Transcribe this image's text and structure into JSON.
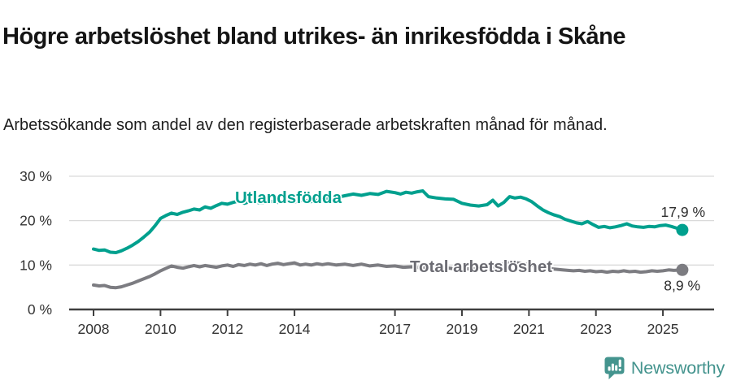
{
  "header": {
    "title": "Högre arbetslöshet bland utrikes- än inrikesfödda i Skåne",
    "subtitle": "Arbetssökande som andel av den registerbaserade arbetskraften månad för månad."
  },
  "footer": {
    "brand": "Newsworthy",
    "brand_color": "#44948e",
    "icon": "newsworthy-chart-bubble-icon"
  },
  "chart_data": {
    "type": "line",
    "title": "Högre arbetslöshet bland utrikes- än inrikesfödda i Skåne",
    "subtitle": "Arbetssökande som andel av den registerbaserade arbetskraften månad för månad.",
    "unit": "%",
    "grid": "horizontal",
    "legend_position": "inline-labels",
    "xlim": [
      2007.3,
      2026.3
    ],
    "ylim": [
      0,
      32
    ],
    "x_ticks": [
      2008,
      2010,
      2012,
      2014,
      2017,
      2019,
      2021,
      2023,
      2025
    ],
    "y_ticks": [
      {
        "value": 0,
        "label": "0 %"
      },
      {
        "value": 10,
        "label": "10 %"
      },
      {
        "value": 20,
        "label": "20 %"
      },
      {
        "value": 30,
        "label": "30 %"
      }
    ],
    "axis_color": "#3f3f3f",
    "gridline_color": "#dadada",
    "tick_label_color": "#333333",
    "end_label_color": "#2d2d2d",
    "series": [
      {
        "name": "Utlandsfödda",
        "color": "#00a08e",
        "label_color": "#00a08e",
        "end_label": "17,9 %",
        "end_value": 17.9,
        "points": [
          [
            2008.0,
            13.6
          ],
          [
            2008.17,
            13.3
          ],
          [
            2008.33,
            13.4
          ],
          [
            2008.5,
            12.9
          ],
          [
            2008.67,
            12.8
          ],
          [
            2008.83,
            13.2
          ],
          [
            2009.0,
            13.8
          ],
          [
            2009.17,
            14.5
          ],
          [
            2009.33,
            15.3
          ],
          [
            2009.5,
            16.3
          ],
          [
            2009.67,
            17.4
          ],
          [
            2009.83,
            18.8
          ],
          [
            2010.0,
            20.5
          ],
          [
            2010.17,
            21.2
          ],
          [
            2010.33,
            21.7
          ],
          [
            2010.5,
            21.4
          ],
          [
            2010.67,
            21.9
          ],
          [
            2010.83,
            22.2
          ],
          [
            2011.0,
            22.6
          ],
          [
            2011.17,
            22.4
          ],
          [
            2011.33,
            23.1
          ],
          [
            2011.5,
            22.8
          ],
          [
            2011.67,
            23.4
          ],
          [
            2011.83,
            23.9
          ],
          [
            2012.0,
            23.7
          ],
          [
            2012.17,
            24.1
          ],
          [
            2012.33,
            24.4
          ],
          [
            2012.5,
            23.9
          ],
          [
            2012.67,
            24.3
          ],
          [
            2012.83,
            24.1
          ],
          [
            2013.0,
            24.0
          ],
          [
            2013.25,
            24.4
          ],
          [
            2013.5,
            24.1
          ],
          [
            2013.75,
            24.5
          ],
          [
            2014.0,
            24.2
          ],
          [
            2014.25,
            24.6
          ],
          [
            2014.5,
            24.3
          ],
          [
            2014.75,
            24.7
          ],
          [
            2015.0,
            24.9
          ],
          [
            2015.25,
            25.2
          ],
          [
            2015.5,
            25.6
          ],
          [
            2015.75,
            26.0
          ],
          [
            2016.0,
            25.7
          ],
          [
            2016.25,
            26.1
          ],
          [
            2016.5,
            25.9
          ],
          [
            2016.75,
            26.6
          ],
          [
            2017.0,
            26.3
          ],
          [
            2017.17,
            26.0
          ],
          [
            2017.33,
            26.4
          ],
          [
            2017.5,
            26.2
          ],
          [
            2017.67,
            26.5
          ],
          [
            2017.83,
            26.7
          ],
          [
            2018.0,
            25.4
          ],
          [
            2018.25,
            25.1
          ],
          [
            2018.5,
            24.9
          ],
          [
            2018.75,
            24.8
          ],
          [
            2019.0,
            23.9
          ],
          [
            2019.25,
            23.5
          ],
          [
            2019.5,
            23.3
          ],
          [
            2019.75,
            23.6
          ],
          [
            2019.92,
            24.6
          ],
          [
            2020.08,
            23.3
          ],
          [
            2020.25,
            24.1
          ],
          [
            2020.42,
            25.4
          ],
          [
            2020.58,
            25.1
          ],
          [
            2020.75,
            25.3
          ],
          [
            2020.92,
            24.9
          ],
          [
            2021.08,
            24.3
          ],
          [
            2021.25,
            23.3
          ],
          [
            2021.42,
            22.4
          ],
          [
            2021.58,
            21.8
          ],
          [
            2021.75,
            21.3
          ],
          [
            2021.92,
            20.9
          ],
          [
            2022.08,
            20.3
          ],
          [
            2022.25,
            19.9
          ],
          [
            2022.42,
            19.5
          ],
          [
            2022.58,
            19.3
          ],
          [
            2022.75,
            19.8
          ],
          [
            2022.92,
            19.1
          ],
          [
            2023.08,
            18.5
          ],
          [
            2023.25,
            18.7
          ],
          [
            2023.42,
            18.4
          ],
          [
            2023.58,
            18.6
          ],
          [
            2023.75,
            18.9
          ],
          [
            2023.92,
            19.3
          ],
          [
            2024.08,
            18.8
          ],
          [
            2024.25,
            18.6
          ],
          [
            2024.42,
            18.5
          ],
          [
            2024.58,
            18.7
          ],
          [
            2024.75,
            18.6
          ],
          [
            2024.92,
            18.9
          ],
          [
            2025.08,
            19.0
          ],
          [
            2025.25,
            18.7
          ],
          [
            2025.42,
            18.3
          ],
          [
            2025.58,
            17.9
          ]
        ]
      },
      {
        "name": "Total arbetslöshet",
        "color": "#7c7c81",
        "label_color": "#6c6c73",
        "end_label": "8,9 %",
        "end_value": 8.9,
        "points": [
          [
            2008.0,
            5.5
          ],
          [
            2008.17,
            5.3
          ],
          [
            2008.33,
            5.4
          ],
          [
            2008.5,
            5.0
          ],
          [
            2008.67,
            4.9
          ],
          [
            2008.83,
            5.1
          ],
          [
            2009.0,
            5.5
          ],
          [
            2009.17,
            5.9
          ],
          [
            2009.33,
            6.4
          ],
          [
            2009.5,
            6.9
          ],
          [
            2009.67,
            7.4
          ],
          [
            2009.83,
            8.0
          ],
          [
            2010.0,
            8.7
          ],
          [
            2010.17,
            9.3
          ],
          [
            2010.33,
            9.8
          ],
          [
            2010.5,
            9.5
          ],
          [
            2010.67,
            9.3
          ],
          [
            2010.83,
            9.6
          ],
          [
            2011.0,
            9.9
          ],
          [
            2011.17,
            9.6
          ],
          [
            2011.33,
            9.9
          ],
          [
            2011.5,
            9.7
          ],
          [
            2011.67,
            9.5
          ],
          [
            2011.83,
            9.8
          ],
          [
            2012.0,
            10.0
          ],
          [
            2012.17,
            9.7
          ],
          [
            2012.33,
            10.1
          ],
          [
            2012.5,
            9.9
          ],
          [
            2012.67,
            10.2
          ],
          [
            2012.83,
            10.0
          ],
          [
            2013.0,
            10.3
          ],
          [
            2013.17,
            9.9
          ],
          [
            2013.33,
            10.2
          ],
          [
            2013.5,
            10.4
          ],
          [
            2013.67,
            10.1
          ],
          [
            2013.83,
            10.3
          ],
          [
            2014.0,
            10.5
          ],
          [
            2014.17,
            10.0
          ],
          [
            2014.33,
            10.2
          ],
          [
            2014.5,
            10.0
          ],
          [
            2014.67,
            10.3
          ],
          [
            2014.83,
            10.1
          ],
          [
            2015.0,
            10.3
          ],
          [
            2015.25,
            10.0
          ],
          [
            2015.5,
            10.2
          ],
          [
            2015.75,
            9.9
          ],
          [
            2016.0,
            10.2
          ],
          [
            2016.25,
            9.8
          ],
          [
            2016.5,
            10.0
          ],
          [
            2016.75,
            9.7
          ],
          [
            2017.0,
            9.8
          ],
          [
            2017.25,
            9.5
          ],
          [
            2017.5,
            9.6
          ],
          [
            2017.75,
            9.4
          ],
          [
            2018.0,
            9.5
          ],
          [
            2018.25,
            9.3
          ],
          [
            2018.5,
            9.4
          ],
          [
            2018.75,
            9.2
          ],
          [
            2019.0,
            9.3
          ],
          [
            2019.25,
            9.1
          ],
          [
            2019.5,
            9.2
          ],
          [
            2019.75,
            9.4
          ],
          [
            2020.0,
            9.6
          ],
          [
            2020.25,
            10.3
          ],
          [
            2020.5,
            10.6
          ],
          [
            2020.75,
            10.4
          ],
          [
            2021.0,
            10.1
          ],
          [
            2021.25,
            9.7
          ],
          [
            2021.5,
            9.4
          ],
          [
            2021.75,
            9.1
          ],
          [
            2022.0,
            8.9
          ],
          [
            2022.17,
            8.8
          ],
          [
            2022.33,
            8.7
          ],
          [
            2022.5,
            8.8
          ],
          [
            2022.67,
            8.6
          ],
          [
            2022.83,
            8.7
          ],
          [
            2023.0,
            8.5
          ],
          [
            2023.17,
            8.6
          ],
          [
            2023.33,
            8.4
          ],
          [
            2023.5,
            8.6
          ],
          [
            2023.67,
            8.5
          ],
          [
            2023.83,
            8.7
          ],
          [
            2024.0,
            8.5
          ],
          [
            2024.17,
            8.6
          ],
          [
            2024.33,
            8.4
          ],
          [
            2024.5,
            8.5
          ],
          [
            2024.67,
            8.7
          ],
          [
            2024.83,
            8.6
          ],
          [
            2025.0,
            8.7
          ],
          [
            2025.17,
            8.9
          ],
          [
            2025.33,
            8.8
          ],
          [
            2025.58,
            8.9
          ]
        ]
      }
    ]
  }
}
